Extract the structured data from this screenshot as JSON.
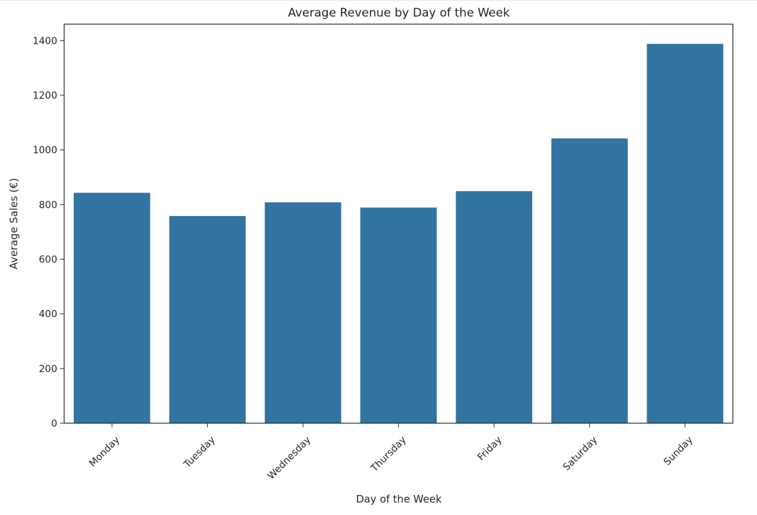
{
  "chart_data": {
    "type": "bar",
    "title": "Average Revenue by Day of the Week",
    "xlabel": "Day of the Week",
    "ylabel": "Average Sales (€)",
    "categories": [
      "Monday",
      "Tuesday",
      "Wednesday",
      "Thursday",
      "Friday",
      "Saturday",
      "Sunday"
    ],
    "values": [
      843,
      758,
      808,
      789,
      849,
      1042,
      1388
    ],
    "ylim": [
      0,
      1460
    ],
    "yticks": [
      "0",
      "200",
      "400",
      "600",
      "800",
      "1000",
      "1200",
      "1400"
    ],
    "bar_color": "#3274a1",
    "grid": false,
    "legend": "none"
  }
}
